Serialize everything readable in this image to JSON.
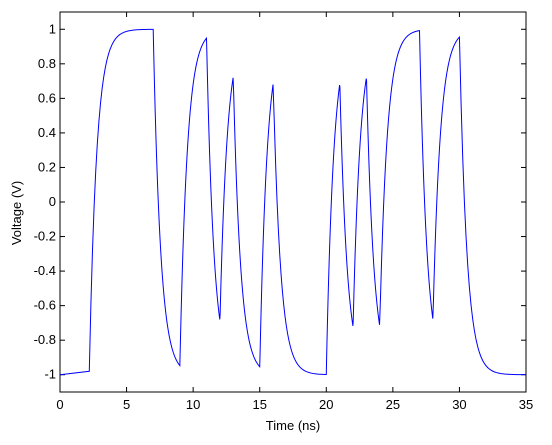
{
  "chart_data": {
    "type": "line",
    "title": "",
    "xlabel": "Time (ns)",
    "ylabel": "Voltage (V)",
    "xlim": [
      0,
      35
    ],
    "ylim": [
      -1.1,
      1.1
    ],
    "xticks": [
      "0",
      "5",
      "10",
      "15",
      "20",
      "25",
      "30",
      "35"
    ],
    "yticks": [
      "1",
      "0.8",
      "0.6",
      "0.4",
      "0.2",
      "0",
      "-0.2",
      "-0.4",
      "-0.6",
      "-0.8",
      "-1"
    ],
    "grid": false,
    "series": [
      {
        "color": "#0000ff",
        "x": [
          0,
          2.2,
          7.0,
          9.0,
          11.0,
          12.0,
          13.0,
          15.0,
          16.0,
          20.0,
          21.0,
          22.0,
          23.0,
          24.0,
          27.0,
          28.0,
          30.0,
          35.0
        ],
        "y": [
          -1.0,
          -0.98,
          1.0,
          -0.96,
          0.97,
          -0.73,
          0.77,
          -0.97,
          0.74,
          -0.99,
          0.74,
          -0.76,
          0.78,
          -0.77,
          1.0,
          -0.72,
          0.97,
          -0.99
        ]
      }
    ]
  }
}
